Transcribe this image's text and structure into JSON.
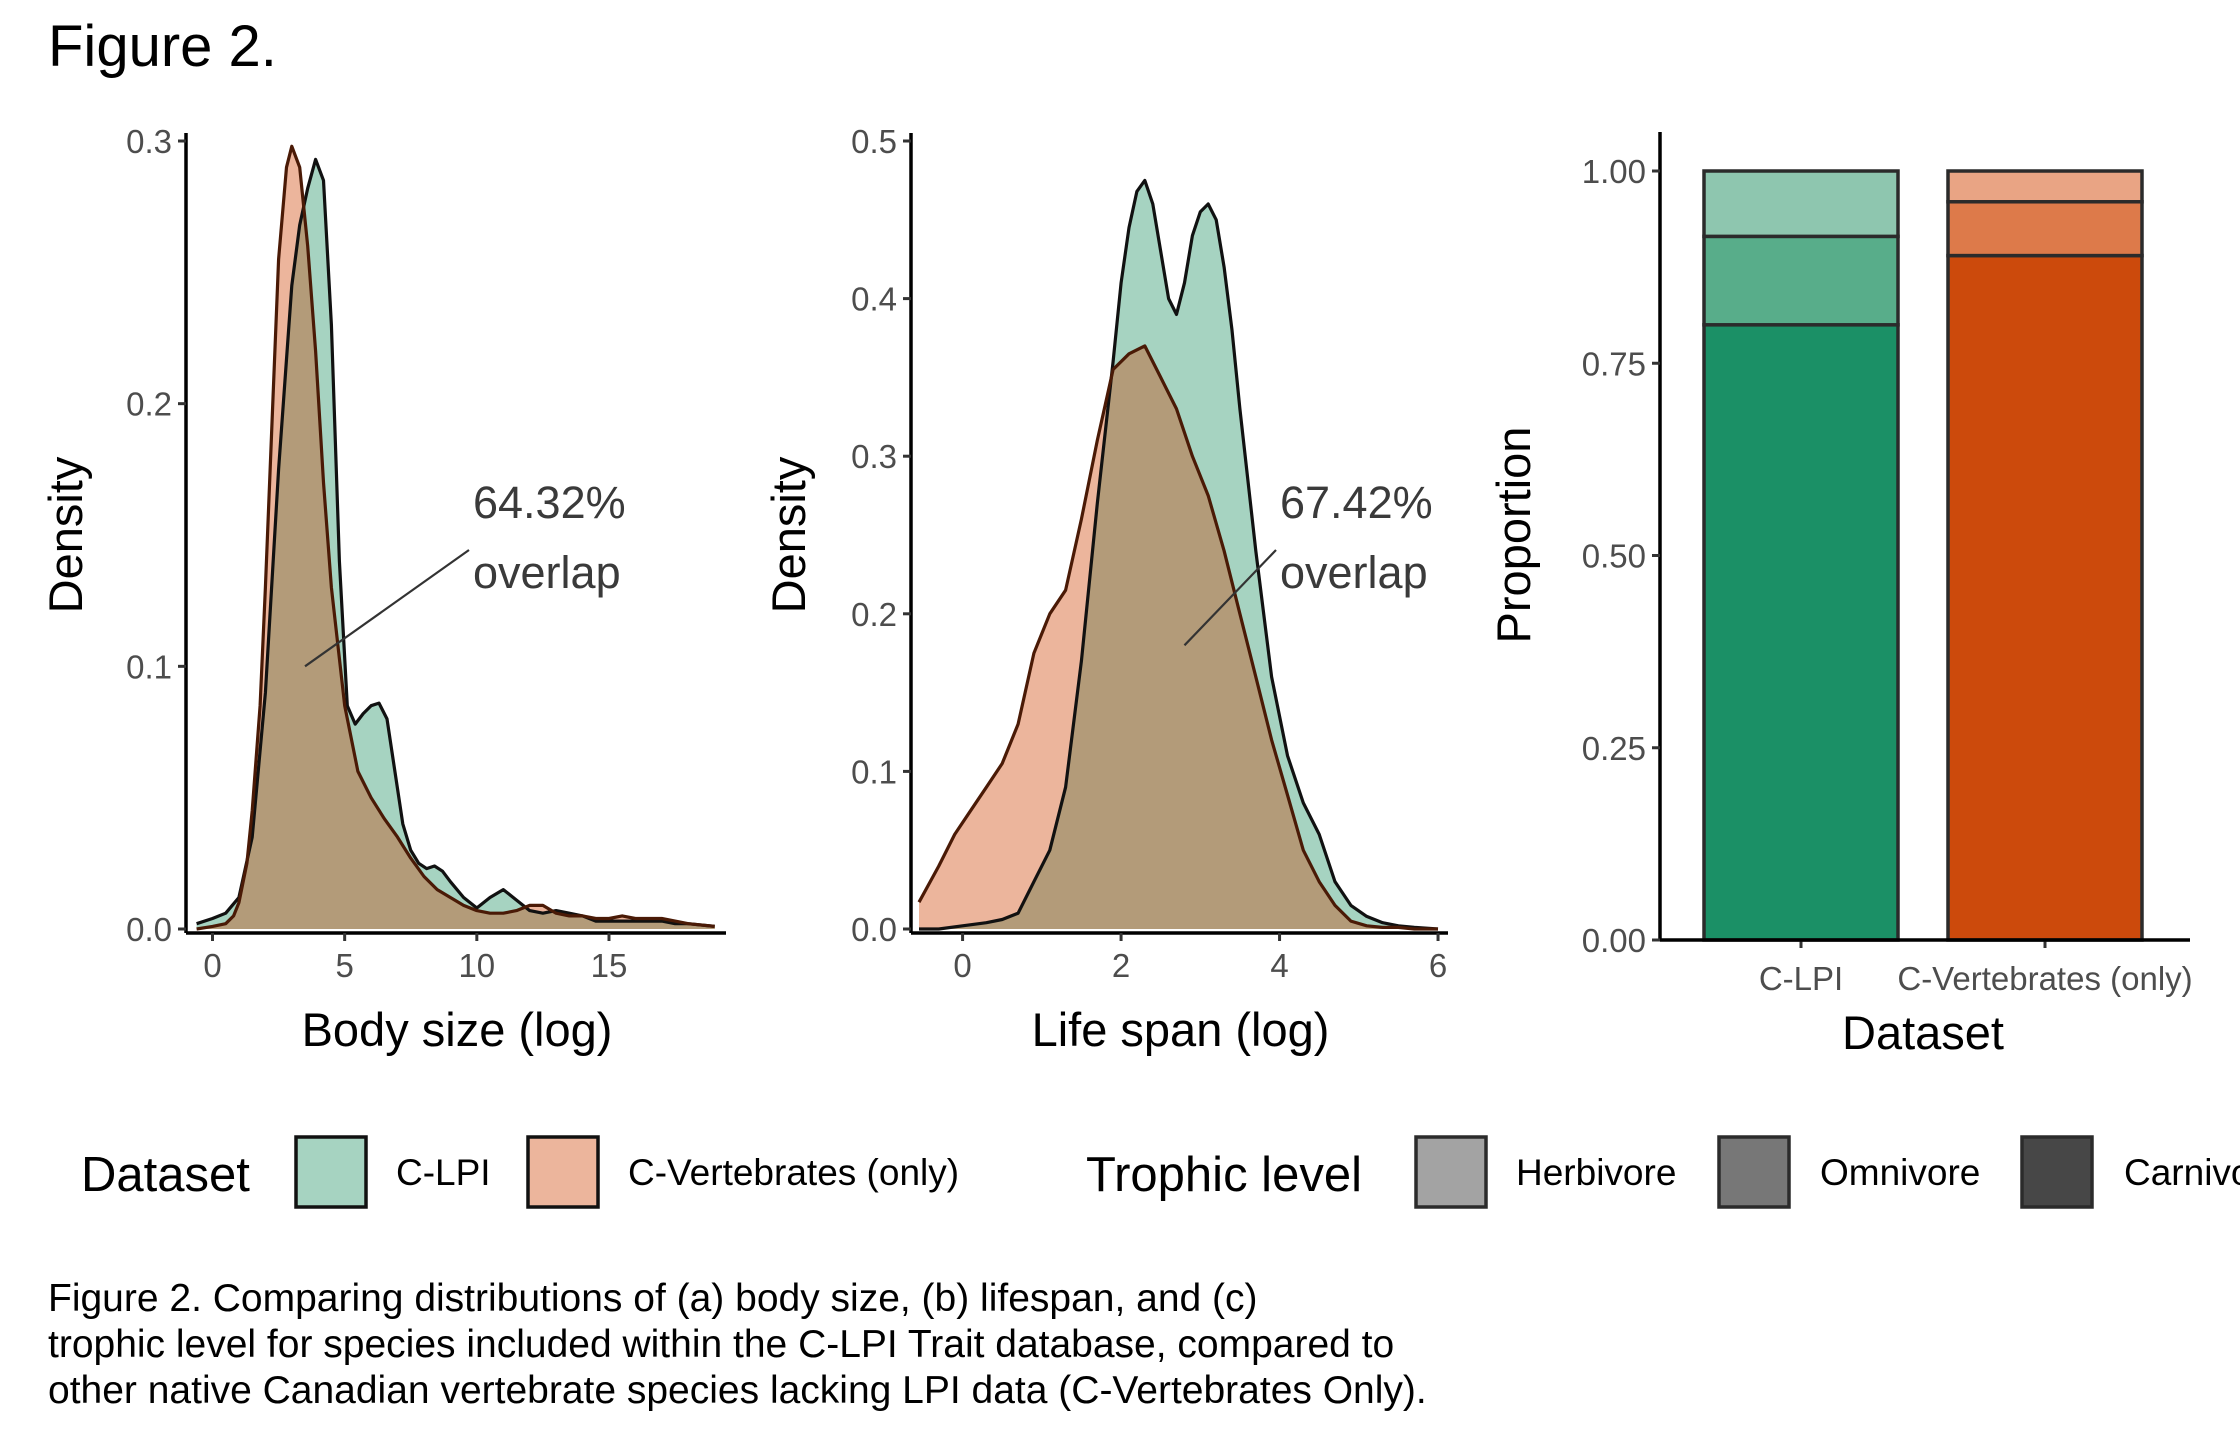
{
  "figure_title": "Figure 2.",
  "caption_lines": [
    "Figure 2. Comparing distributions of (a) body size, (b) lifespan, and (c)",
    "trophic level for species included within the C-LPI Trait database, compared to",
    "other native Canadian vertebrate species lacking LPI data (C-Vertebrates Only)."
  ],
  "colors": {
    "c_lpi": "#1b9066",
    "c_vert": "#cc4a0c",
    "c_lpi_fill": "#a6d3c1",
    "c_vert_fill": "#ecb59c",
    "overlap_fill": "#b39b79",
    "herbivore": "#a3a3a3",
    "omnivore": "#777777",
    "carnivore": "#474747"
  },
  "legend": {
    "dataset_title": "Dataset",
    "dataset_items": [
      "C-LPI",
      "C-Vertebrates (only)"
    ],
    "trophic_title": "Trophic level",
    "trophic_items": [
      "Herbivore",
      "Omnivore",
      "Carnivore"
    ]
  },
  "chart_data": [
    {
      "type": "area",
      "xlabel": "Body size (log)",
      "ylabel": "Density",
      "xlim": [
        -0.7,
        19.2
      ],
      "ylim": [
        0,
        0.3
      ],
      "xticks": [
        0,
        5,
        10,
        15
      ],
      "yticks": [
        0.0,
        0.1,
        0.2,
        0.3
      ],
      "annotation": {
        "lines": [
          "64.32%",
          "overlap"
        ],
        "pointer": [
          3.5,
          0.1
        ]
      },
      "series": [
        {
          "name": "C-LPI",
          "x": [
            -0.6,
            0,
            0.5,
            1,
            1.5,
            2,
            2.5,
            3,
            3.3,
            3.6,
            3.9,
            4.2,
            4.5,
            4.8,
            5.1,
            5.4,
            5.7,
            6,
            6.3,
            6.6,
            6.9,
            7.2,
            7.5,
            7.8,
            8.1,
            8.4,
            8.7,
            9,
            9.5,
            10,
            10.5,
            11,
            11.5,
            12,
            12.5,
            13,
            13.5,
            14,
            14.5,
            15,
            15.5,
            16,
            16.5,
            17,
            17.5,
            18,
            19
          ],
          "y": [
            0.002,
            0.004,
            0.006,
            0.012,
            0.035,
            0.09,
            0.175,
            0.245,
            0.268,
            0.282,
            0.293,
            0.285,
            0.23,
            0.14,
            0.085,
            0.078,
            0.082,
            0.085,
            0.086,
            0.08,
            0.06,
            0.04,
            0.03,
            0.025,
            0.023,
            0.024,
            0.022,
            0.018,
            0.012,
            0.008,
            0.012,
            0.015,
            0.011,
            0.007,
            0.006,
            0.007,
            0.006,
            0.005,
            0.003,
            0.003,
            0.003,
            0.003,
            0.003,
            0.003,
            0.002,
            0.002,
            0.001
          ]
        },
        {
          "name": "C-Vertebrates (only)",
          "x": [
            -0.6,
            0,
            0.5,
            0.8,
            1,
            1.3,
            1.5,
            1.8,
            2,
            2.3,
            2.5,
            2.8,
            3,
            3.3,
            3.6,
            3.9,
            4.2,
            4.5,
            5,
            5.5,
            6,
            6.5,
            7,
            7.5,
            8,
            8.5,
            9,
            9.5,
            10,
            10.5,
            11,
            11.5,
            12,
            12.5,
            13,
            13.5,
            14,
            14.5,
            15,
            15.5,
            16,
            16.5,
            17,
            17.5,
            18,
            19
          ],
          "y": [
            0,
            0.001,
            0.002,
            0.005,
            0.01,
            0.025,
            0.045,
            0.085,
            0.13,
            0.205,
            0.255,
            0.29,
            0.298,
            0.29,
            0.26,
            0.22,
            0.17,
            0.13,
            0.085,
            0.06,
            0.05,
            0.042,
            0.035,
            0.027,
            0.02,
            0.015,
            0.012,
            0.009,
            0.007,
            0.006,
            0.006,
            0.007,
            0.009,
            0.009,
            0.006,
            0.005,
            0.005,
            0.004,
            0.004,
            0.005,
            0.004,
            0.004,
            0.004,
            0.003,
            0.002,
            0.001
          ]
        }
      ]
    },
    {
      "type": "area",
      "xlabel": "Life span (log)",
      "ylabel": "Density",
      "xlim": [
        -0.55,
        6.05
      ],
      "ylim": [
        0,
        0.5
      ],
      "xticks": [
        0,
        2,
        4,
        6
      ],
      "yticks": [
        0.0,
        0.1,
        0.2,
        0.3,
        0.4,
        0.5
      ],
      "annotation": {
        "lines": [
          "67.42%",
          "overlap"
        ],
        "pointer": [
          2.8,
          0.18
        ]
      },
      "series": [
        {
          "name": "C-LPI",
          "x": [
            -0.55,
            -0.3,
            0,
            0.3,
            0.5,
            0.7,
            0.9,
            1.1,
            1.3,
            1.5,
            1.7,
            1.9,
            2,
            2.1,
            2.2,
            2.3,
            2.4,
            2.5,
            2.6,
            2.7,
            2.8,
            2.9,
            3,
            3.1,
            3.2,
            3.3,
            3.4,
            3.5,
            3.7,
            3.9,
            4.1,
            4.3,
            4.5,
            4.7,
            4.9,
            5.1,
            5.3,
            5.5,
            5.7,
            6
          ],
          "y": [
            0,
            0,
            0.002,
            0.004,
            0.006,
            0.01,
            0.03,
            0.05,
            0.09,
            0.17,
            0.27,
            0.36,
            0.41,
            0.445,
            0.468,
            0.475,
            0.46,
            0.43,
            0.4,
            0.39,
            0.41,
            0.44,
            0.455,
            0.46,
            0.45,
            0.42,
            0.38,
            0.33,
            0.24,
            0.16,
            0.11,
            0.08,
            0.06,
            0.03,
            0.015,
            0.008,
            0.004,
            0.002,
            0.001,
            0
          ]
        },
        {
          "name": "C-Vertebrates (only)",
          "x": [
            -0.55,
            -0.3,
            -0.1,
            0.1,
            0.3,
            0.5,
            0.7,
            0.9,
            1.1,
            1.3,
            1.5,
            1.7,
            1.9,
            2.1,
            2.3,
            2.5,
            2.7,
            2.9,
            3.1,
            3.3,
            3.5,
            3.7,
            3.9,
            4.1,
            4.3,
            4.5,
            4.7,
            4.9,
            5.1,
            5.3,
            5.5,
            5.7,
            6
          ],
          "y": [
            0.017,
            0.04,
            0.06,
            0.075,
            0.09,
            0.105,
            0.13,
            0.175,
            0.2,
            0.215,
            0.26,
            0.31,
            0.355,
            0.365,
            0.37,
            0.35,
            0.33,
            0.3,
            0.275,
            0.24,
            0.2,
            0.16,
            0.12,
            0.085,
            0.05,
            0.03,
            0.015,
            0.005,
            0.002,
            0.001,
            0.001,
            0,
            0
          ]
        }
      ]
    },
    {
      "type": "bar",
      "stacked": true,
      "xlabel": "Dataset",
      "ylabel": "Proportion",
      "categories": [
        "C-LPI",
        "C-Vertebrates (only)"
      ],
      "ylim": [
        0,
        1.05
      ],
      "yticks": [
        0.0,
        0.25,
        0.5,
        0.75,
        1.0
      ],
      "series": [
        {
          "name": "Carnivore",
          "values": [
            0.8,
            0.89
          ]
        },
        {
          "name": "Omnivore",
          "values": [
            0.115,
            0.07
          ]
        },
        {
          "name": "Herbivore",
          "values": [
            0.085,
            0.04
          ]
        }
      ]
    }
  ]
}
